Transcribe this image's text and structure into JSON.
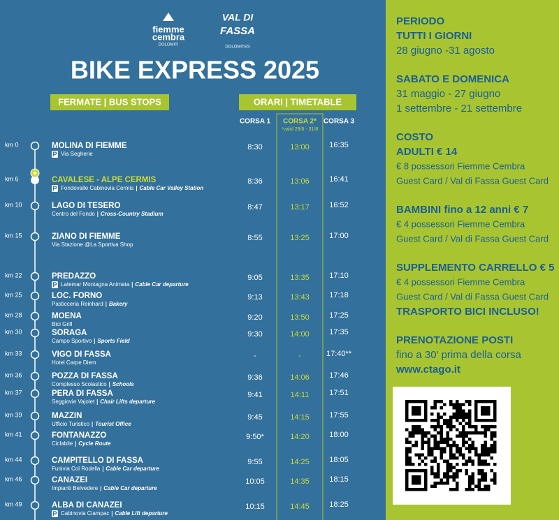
{
  "header": {
    "logo_left": {
      "line1": "fiemme",
      "line2": "cembra",
      "line3": "DOLOMITI"
    },
    "logo_right": {
      "line1": "VAL DI",
      "line2": "FASSA",
      "line3": "DOLOMITES"
    },
    "title": "BIKE EXPRESS 2025",
    "stops_header": "FERMATE | BUS STOPS",
    "times_header": "ORARI | TIMETABLE"
  },
  "timetable": {
    "columns": [
      "CORSA 1",
      "CORSA 2*",
      "CORSA 3"
    ],
    "column_note": "*valid 28/6 - 31/8",
    "stops": [
      {
        "km": "km 0",
        "name": "MOLINA DI FIEMME",
        "place": "Via Segherie",
        "detail": null,
        "parking": true,
        "times": [
          "8:30",
          "13:00",
          "16:35"
        ]
      },
      {
        "km": "km 6",
        "name": "CAVALESE - ALPE CERMIS",
        "place": "Fondovalle Cabinovia Cermis",
        "detail": "Cable Car Valley Station",
        "parking": true,
        "highlight": true,
        "times": [
          "8:36",
          "13:06",
          "16:41"
        ]
      },
      {
        "km": "km 10",
        "name": "LAGO DI TESERO",
        "place": "Centro del Fondo",
        "detail": "Cross-Country Stadium",
        "parking": false,
        "times": [
          "8:47",
          "13:17",
          "16:52"
        ]
      },
      {
        "km": "km 15",
        "name": "ZIANO DI FIEMME",
        "place": "Via Stazione @La Sportiva Shop",
        "detail": null,
        "parking": false,
        "times": [
          "8:55",
          "13:25",
          "17:00"
        ]
      },
      {
        "km": "km 22",
        "name": "PREDAZZO",
        "place": "Latemar Montagna Animata",
        "detail": "Cable Car departure",
        "parking": true,
        "times": [
          "9:05",
          "13:35",
          "17:10"
        ]
      },
      {
        "km": "km 25",
        "name": "LOC. FORNO",
        "place": "Pasticceria Reinhard",
        "detail": "Bakery",
        "parking": false,
        "times": [
          "9:13",
          "13:43",
          "17:18"
        ]
      },
      {
        "km": "km 28",
        "name": "MOENA",
        "place": "Bici Grill",
        "detail": null,
        "parking": false,
        "times": [
          "9:20",
          "13:50",
          "17:25"
        ]
      },
      {
        "km": "km 30",
        "name": "SORAGA",
        "place": "Campo Sportivo",
        "detail": "Sports Field",
        "parking": false,
        "times": [
          "9:30",
          "14:00",
          "17:35"
        ]
      },
      {
        "km": "km 33",
        "name": "VIGO DI FASSA",
        "place": "Hotel Carpe Diem",
        "detail": null,
        "parking": false,
        "times": [
          "-",
          "-",
          "17:40**"
        ]
      },
      {
        "km": "km 36",
        "name": "POZZA DI FASSA",
        "place": "Complesso Scolastico",
        "detail": "Schools",
        "parking": false,
        "times": [
          "9:36",
          "14:06",
          "17:46"
        ]
      },
      {
        "km": "km 37",
        "name": "PERA DI FASSA",
        "place": "Seggiovie Vajolet",
        "detail": "Chair Lifts departure",
        "parking": false,
        "times": [
          "9:41",
          "14:11",
          "17:51"
        ]
      },
      {
        "km": "km 39",
        "name": "MAZZIN",
        "place": "Ufficio Turistico",
        "detail": "Tourist Office",
        "parking": false,
        "times": [
          "9:45",
          "14:15",
          "17:55"
        ]
      },
      {
        "km": "km 41",
        "name": "FONTANAZZO",
        "place": "Ciclabile",
        "detail": "Cycle Route",
        "parking": false,
        "times": [
          "9:50*",
          "14:20",
          "18:00"
        ]
      },
      {
        "km": "km 44",
        "name": "CAMPITELLO DI FASSA",
        "place": "Funivia Col Rodella",
        "detail": "Cable Car departure",
        "parking": false,
        "times": [
          "9:55",
          "14:25",
          "18:05"
        ]
      },
      {
        "km": "km 46",
        "name": "CANAZEI",
        "place": "Impianti Belvedere",
        "detail": "Cable Car departure",
        "parking": false,
        "times": [
          "10:05",
          "14:35",
          "18:15"
        ]
      },
      {
        "km": "km 49",
        "name": "ALBA DI CANAZEI",
        "place": "Cabinovia Ciampac",
        "detail": "Cable Lift departure",
        "parking": true,
        "times": [
          "10:15",
          "14:45",
          "18:25"
        ]
      }
    ]
  },
  "sidebar": {
    "blocks": [
      [
        {
          "text": "PERIODO",
          "style": "head"
        },
        {
          "text": "TUTTI I GIORNI",
          "style": "head"
        },
        {
          "text": "28 giugno -31  agosto",
          "style": "text"
        }
      ],
      [
        {
          "text": "SABATO E DOMENICA",
          "style": "head"
        },
        {
          "text": "31 maggio - 27 giugno",
          "style": "text"
        },
        {
          "text": "1 settembre - 21 settembre",
          "style": "text"
        }
      ],
      [
        {
          "text": "COSTO",
          "style": "head"
        },
        {
          "text": "ADULTI € 14",
          "style": "head"
        },
        {
          "text": "€ 8 possessori Fiemme Cembra",
          "style": "small"
        },
        {
          "text": "Guest Card / Val di Fassa Guest Card",
          "style": "small"
        }
      ],
      [
        {
          "text": "BAMBINI fino a 12 anni € 7",
          "style": "head"
        },
        {
          "text": "€ 4 possessori  Fiemme Cembra",
          "style": "small"
        },
        {
          "text": "Guest Card / Val di Fassa Guest Card",
          "style": "small"
        }
      ],
      [
        {
          "text": "SUPPLEMENTO CARRELLO € 5",
          "style": "head"
        },
        {
          "text": "€ 4 possessori  Fiemme  Cembra",
          "style": "small"
        },
        {
          "text": "Guest Card / Val di Fassa Guest Card",
          "style": "small"
        },
        {
          "text": "TRASPORTO BICI INCLUSO!",
          "style": "head"
        }
      ],
      [
        {
          "text": "PRENOTAZIONE POSTI",
          "style": "head"
        },
        {
          "text": "fino a 30' prima della corsa",
          "style": "text"
        },
        {
          "text": "www.ctago.it",
          "style": "head"
        }
      ]
    ]
  }
}
